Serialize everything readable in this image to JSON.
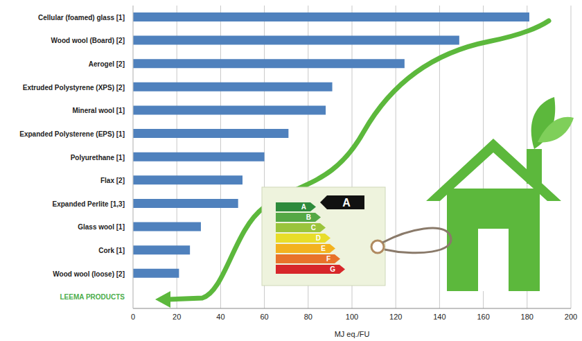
{
  "chart_data": {
    "type": "bar",
    "orientation": "horizontal",
    "categories": [
      "Cellular (foamed) glass [1]",
      "Wood wool (Board) [2]",
      "Aerogel [2]",
      "Extruded Polystyrene (XPS) [2]",
      "Mineral wool [1]",
      "Expanded Polysterene (EPS) [1]",
      "Polyurethane [1]",
      "Flax [2]",
      "Expanded Perlite  [1,3]",
      "Glass wool [1]",
      "Cork [1]",
      "Wood wool (loose) [2]",
      "LEEMA PRODUCTS"
    ],
    "values": [
      181,
      149,
      124,
      91,
      88,
      71,
      60,
      50,
      48,
      31,
      26,
      21,
      null
    ],
    "color": "#4f81bd",
    "xlabel": "MJ eq./FU",
    "xlim": [
      0,
      200
    ],
    "xticks": [
      0,
      20,
      40,
      60,
      80,
      100,
      120,
      140,
      160,
      180,
      200
    ],
    "grid": true,
    "annotations": {
      "energy_classes": [
        "A",
        "B",
        "C",
        "D",
        "E",
        "F",
        "G"
      ],
      "energy_rating": "A"
    }
  }
}
